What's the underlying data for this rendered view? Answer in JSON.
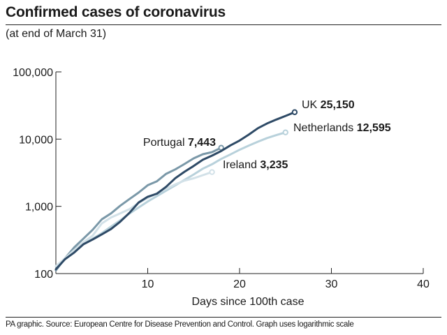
{
  "header": {
    "title": "Confirmed cases of coronavirus",
    "subtitle": "(at end of March 31)"
  },
  "footer": {
    "note": "PA graphic. Source: European Centre for Disease Prevention and Control. Graph uses logarithmic scale"
  },
  "chart_data": {
    "type": "line",
    "title": "Confirmed cases of coronavirus",
    "subtitle": "(at end of March 31)",
    "xlabel": "Days since 100th case",
    "ylabel": "",
    "yscale": "log",
    "xlim": [
      0,
      40
    ],
    "ylim": [
      100,
      100000
    ],
    "xticks": [
      10,
      20,
      30,
      40
    ],
    "yticks": [
      100,
      1000,
      10000,
      100000
    ],
    "ytick_labels": [
      "100",
      "1,000",
      "10,000",
      "100,000"
    ],
    "grid": false,
    "series": [
      {
        "name": "Netherlands",
        "value_label": "12,595",
        "color": "#b8d1db",
        "x": [
          0,
          1,
          2,
          3,
          4,
          5,
          6,
          7,
          8,
          9,
          10,
          11,
          12,
          13,
          14,
          15,
          16,
          17,
          18,
          19,
          20,
          21,
          22,
          23,
          24,
          25
        ],
        "y": [
          128,
          165,
          215,
          275,
          330,
          400,
          500,
          620,
          780,
          960,
          1180,
          1420,
          1710,
          2050,
          2470,
          2980,
          3630,
          4220,
          5080,
          5910,
          6950,
          8020,
          9150,
          10380,
          11470,
          12595
        ]
      },
      {
        "name": "Portugal",
        "value_label": "7,443",
        "color": "#7a98a8",
        "x": [
          0,
          1,
          2,
          3,
          4,
          5,
          6,
          7,
          8,
          9,
          10,
          11,
          12,
          13,
          14,
          15,
          16,
          17,
          18
        ],
        "y": [
          112,
          169,
          245,
          331,
          448,
          642,
          785,
          1020,
          1280,
          1600,
          2060,
          2362,
          3040,
          3544,
          4268,
          5170,
          5962,
          6408,
          7443
        ]
      },
      {
        "name": "Ireland",
        "value_label": "3,235",
        "color": "#d2e1e8",
        "x": [
          0,
          1,
          2,
          3,
          4,
          5,
          6,
          7,
          8,
          9,
          10,
          11,
          12,
          13,
          14,
          15,
          16,
          17
        ],
        "y": [
          129,
          169,
          223,
          292,
          366,
          557,
          683,
          785,
          906,
          1125,
          1329,
          1564,
          1819,
          2121,
          2415,
          2615,
          2910,
          3235
        ]
      },
      {
        "name": "UK",
        "value_label": "25,150",
        "color": "#2e4a66",
        "x": [
          0,
          1,
          2,
          3,
          4,
          5,
          6,
          7,
          8,
          9,
          10,
          11,
          12,
          13,
          14,
          15,
          16,
          17,
          18,
          19,
          20,
          21,
          22,
          23,
          24,
          25,
          26
        ],
        "y": [
          116,
          164,
          206,
          273,
          321,
          383,
          460,
          590,
          798,
          1140,
          1391,
          1543,
          1950,
          2626,
          3269,
          3983,
          4937,
          5683,
          6650,
          8077,
          9529,
          11658,
          14543,
          17089,
          19522,
          22141,
          25150
        ]
      }
    ]
  }
}
